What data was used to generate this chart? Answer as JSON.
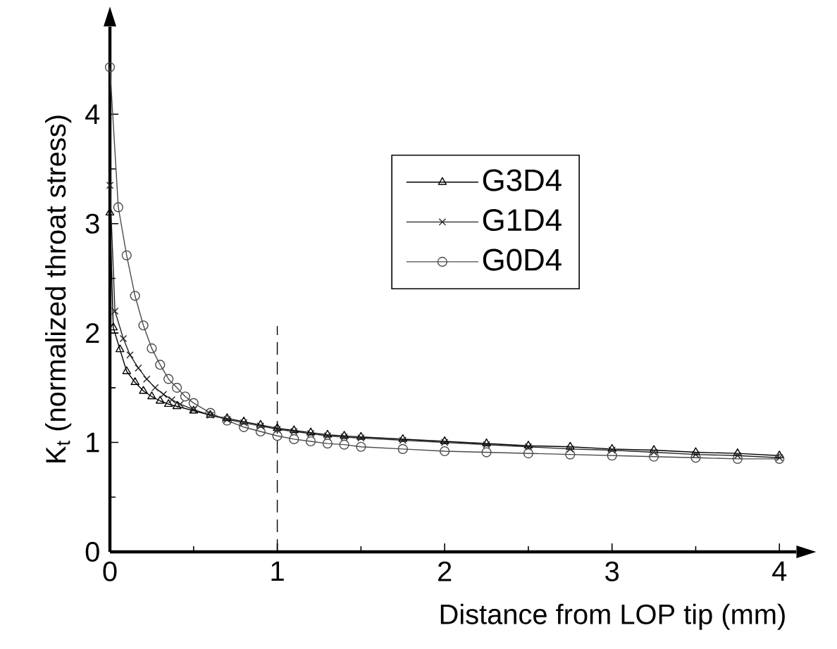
{
  "chart_data": {
    "type": "line",
    "xlabel": "Distance from LOP tip (mm)",
    "ylabel": "K$_{t}$ (normalized throat stress)",
    "xlim": [
      0,
      4.1
    ],
    "ylim": [
      0,
      4.8
    ],
    "xticks": [
      0,
      1,
      2,
      3,
      4
    ],
    "yticks": [
      0,
      1,
      2,
      3,
      4
    ],
    "legend": "right",
    "grid": false,
    "line_style": "solid",
    "series": [
      {
        "name": "G3D4",
        "color": "#000000",
        "marker": "triangle",
        "x": [
          0,
          0.02,
          0.06,
          0.1,
          0.15,
          0.2,
          0.25,
          0.3,
          0.35,
          0.4,
          0.5,
          0.6,
          0.7,
          0.8,
          0.9,
          1.0,
          1.1,
          1.2,
          1.3,
          1.4,
          1.5,
          1.75,
          2.0,
          2.25,
          2.5,
          2.75,
          3.0,
          3.25,
          3.5,
          3.75,
          4.0
        ],
        "values": [
          3.1,
          2.05,
          1.85,
          1.65,
          1.55,
          1.47,
          1.42,
          1.38,
          1.35,
          1.33,
          1.29,
          1.25,
          1.22,
          1.19,
          1.16,
          1.13,
          1.11,
          1.09,
          1.07,
          1.06,
          1.05,
          1.03,
          1.01,
          0.99,
          0.97,
          0.96,
          0.94,
          0.93,
          0.91,
          0.9,
          0.88
        ]
      },
      {
        "name": "G1D4",
        "color": "#222222",
        "marker": "cross",
        "x": [
          0,
          0.03,
          0.08,
          0.12,
          0.17,
          0.22,
          0.27,
          0.32,
          0.37,
          0.42,
          0.5,
          0.6,
          0.7,
          0.8,
          0.9,
          1.0,
          1.1,
          1.2,
          1.3,
          1.4,
          1.5,
          1.75,
          2.0,
          2.25,
          2.5,
          2.75,
          3.0,
          3.25,
          3.5,
          3.75,
          4.0
        ],
        "values": [
          3.35,
          2.2,
          1.95,
          1.8,
          1.68,
          1.58,
          1.5,
          1.44,
          1.39,
          1.35,
          1.3,
          1.25,
          1.21,
          1.18,
          1.15,
          1.12,
          1.1,
          1.08,
          1.06,
          1.05,
          1.04,
          1.02,
          1.0,
          0.98,
          0.96,
          0.94,
          0.93,
          0.91,
          0.89,
          0.88,
          0.86
        ]
      },
      {
        "name": "G0D4",
        "color": "#4a4a4a",
        "marker": "circle",
        "x": [
          0,
          0.05,
          0.1,
          0.15,
          0.2,
          0.25,
          0.3,
          0.35,
          0.4,
          0.45,
          0.5,
          0.6,
          0.7,
          0.8,
          0.9,
          1.0,
          1.1,
          1.2,
          1.3,
          1.4,
          1.5,
          1.75,
          2.0,
          2.25,
          2.5,
          2.75,
          3.0,
          3.25,
          3.5,
          3.75,
          4.0
        ],
        "values": [
          4.43,
          3.15,
          2.71,
          2.34,
          2.07,
          1.86,
          1.71,
          1.58,
          1.5,
          1.42,
          1.36,
          1.27,
          1.2,
          1.14,
          1.1,
          1.06,
          1.03,
          1.01,
          0.99,
          0.98,
          0.96,
          0.94,
          0.92,
          0.91,
          0.9,
          0.89,
          0.88,
          0.87,
          0.86,
          0.85,
          0.85
        ]
      }
    ],
    "ref_lines": [
      {
        "axis": "x",
        "value": 1,
        "line_style": "dashed"
      }
    ]
  }
}
